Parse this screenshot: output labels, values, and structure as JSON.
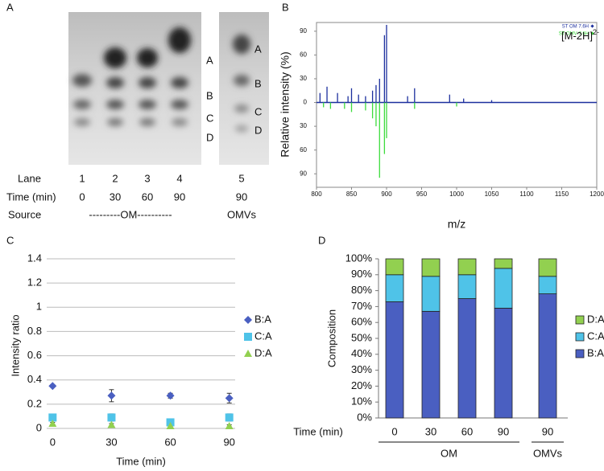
{
  "gel": {
    "panel": "A",
    "band_labels": [
      "A",
      "B",
      "C",
      "D"
    ],
    "band_labels_omv": [
      "A",
      "B",
      "C",
      "D"
    ],
    "lane_label": "Lane",
    "lanes": [
      "1",
      "2",
      "3",
      "4",
      "5"
    ],
    "time_label": "Time (min)",
    "times": [
      "0",
      "30",
      "60",
      "90",
      "90"
    ],
    "source_label": "Source",
    "sources": [
      "---------OM----------",
      "OMVs"
    ]
  },
  "chart_data": [
    {
      "type": "spectrum",
      "panel": "B",
      "x_label": "m/z",
      "y_label": "Relative intensity (%)",
      "annotation": "[M-2H]",
      "annotation_sup": "2-",
      "xlim": [
        800,
        1200
      ],
      "xticks": [
        800,
        850,
        900,
        950,
        1000,
        1050,
        1100,
        1150,
        1200
      ],
      "ylim": [
        -107,
        101
      ],
      "yticks": [
        {
          "value": 90,
          "label": "90"
        },
        {
          "value": 60,
          "label": "60"
        },
        {
          "value": 30,
          "label": "30"
        },
        {
          "value": 0,
          "label": "0"
        },
        {
          "value": -30,
          "label": "30"
        },
        {
          "value": -60,
          "label": "60"
        },
        {
          "value": -90,
          "label": "90"
        }
      ],
      "series": [
        {
          "name": "ST OM 7.6H",
          "color": "#1c2f9e",
          "x": [
            805,
            815,
            830,
            845,
            850,
            860,
            870,
            880,
            885,
            890,
            897,
            900,
            930,
            940,
            990,
            1010,
            1050
          ],
          "values": [
            12,
            20,
            12,
            8,
            18,
            10,
            8,
            15,
            22,
            30,
            85,
            98,
            8,
            18,
            10,
            5,
            3
          ]
        },
        {
          "name": "ST OMV 7.6H",
          "color": "#3ddc3d",
          "x": [
            810,
            820,
            840,
            850,
            870,
            880,
            885,
            890,
            897,
            900,
            940,
            1000
          ],
          "values": [
            -6,
            -8,
            -8,
            -12,
            -10,
            -20,
            -30,
            -95,
            -65,
            -45,
            -8,
            -5
          ]
        }
      ]
    },
    {
      "type": "scatter",
      "panel": "C",
      "x_label": "Time (min)",
      "y_label": "Intensity ratio",
      "x": [
        0,
        30,
        60,
        90
      ],
      "xlim": [
        -3,
        93
      ],
      "xticks": [
        0,
        30,
        60,
        90
      ],
      "ylim": [
        0,
        1.4
      ],
      "yticks": [
        0,
        0.2,
        0.4,
        0.6,
        0.8,
        1,
        1.2,
        1.4
      ],
      "grid": true,
      "legend": "right",
      "series": [
        {
          "name": "B:A",
          "color": "#4a5fc1",
          "marker": "diamond",
          "values": [
            0.35,
            0.27,
            0.27,
            0.25
          ],
          "errors": [
            0.01,
            0.05,
            0.02,
            0.04
          ]
        },
        {
          "name": "C:A",
          "color": "#4fc3e8",
          "marker": "square",
          "values": [
            0.09,
            0.09,
            0.05,
            0.09
          ],
          "errors": [
            0.01,
            0.03,
            0.01,
            0.03
          ]
        },
        {
          "name": "D:A",
          "color": "#92d050",
          "marker": "triangle",
          "values": [
            0.04,
            0.03,
            0.02,
            0.02
          ],
          "errors": [
            0.01,
            0.01,
            0.01,
            0.01
          ]
        }
      ]
    },
    {
      "type": "stacked_bar",
      "panel": "D",
      "x_label": "Time (min)",
      "y_label": "Composition",
      "categories": [
        "0",
        "30",
        "60",
        "90",
        "90"
      ],
      "group_labels": [
        "OM",
        "OMVs"
      ],
      "ylim": [
        0,
        100
      ],
      "yticks": [
        {
          "value": 0,
          "label": "0%"
        },
        {
          "value": 10,
          "label": "10%"
        },
        {
          "value": 20,
          "label": "20%"
        },
        {
          "value": 30,
          "label": "30%"
        },
        {
          "value": 40,
          "label": "40%"
        },
        {
          "value": 50,
          "label": "50%"
        },
        {
          "value": 60,
          "label": "60%"
        },
        {
          "value": 70,
          "label": "70%"
        },
        {
          "value": 80,
          "label": "80%"
        },
        {
          "value": 90,
          "label": "90%"
        },
        {
          "value": 100,
          "label": "100%"
        }
      ],
      "legend": "right",
      "series": [
        {
          "name": "B:A",
          "color": "#4a5fc1",
          "values": [
            73,
            67,
            75,
            69,
            78
          ]
        },
        {
          "name": "C:A",
          "color": "#4fc3e8",
          "values": [
            17,
            22,
            15,
            25,
            11
          ]
        },
        {
          "name": "D:A",
          "color": "#92d050",
          "values": [
            10,
            11,
            10,
            6,
            11
          ]
        }
      ]
    }
  ]
}
